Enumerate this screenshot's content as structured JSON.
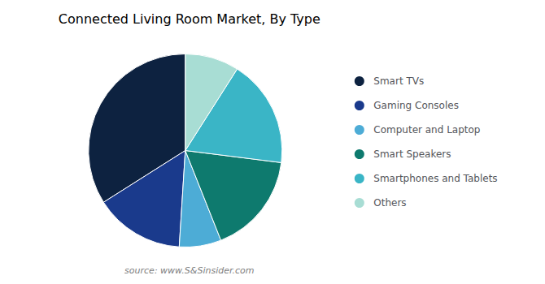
{
  "chart_data": {
    "type": "pie",
    "title": "Connected Living Room Market, By Type",
    "categories": [
      "Smart TVs",
      "Gaming Consoles",
      "Computer and Laptop",
      "Smart Speakers",
      "Smartphones and Tablets",
      "Others"
    ],
    "values": [
      34,
      15,
      7,
      17,
      18,
      9
    ],
    "colors": [
      "#0d2240",
      "#1a3a8c",
      "#4dacd6",
      "#0e7a6e",
      "#3ab5c6",
      "#a8ddd4"
    ],
    "annotations": [
      "source: www.S&Sinsider.com"
    ],
    "legend": "right"
  }
}
